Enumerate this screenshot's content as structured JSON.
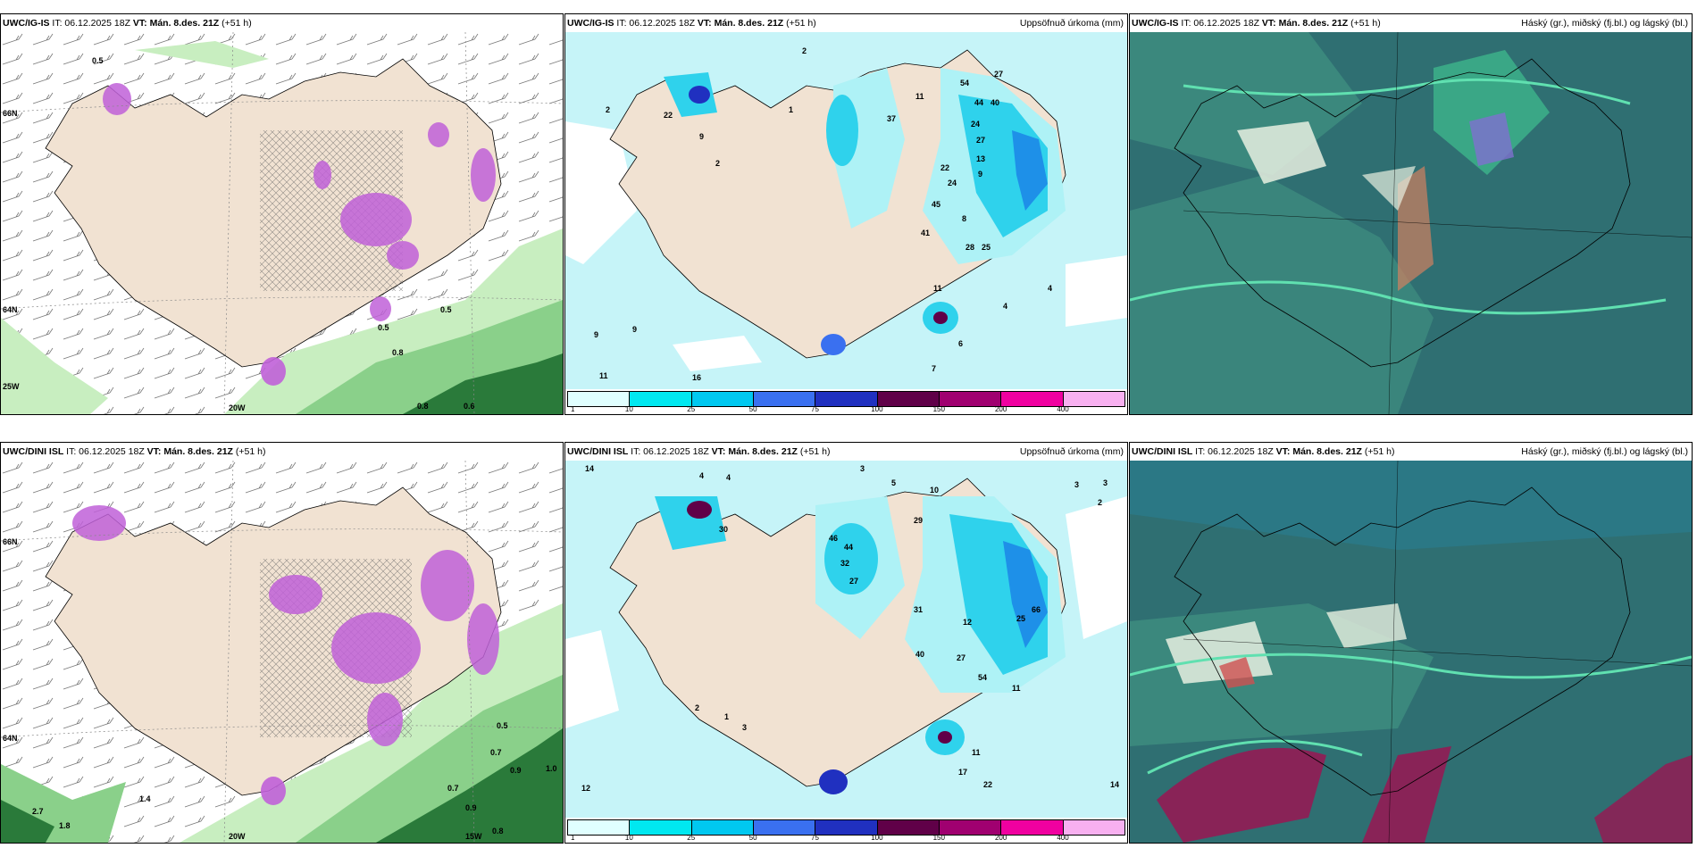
{
  "panels": [
    {
      "id": "p1",
      "title_model": "UWC/IG-IS",
      "title_it": "IT: 06.12.2025 18Z",
      "title_vt": "VT: Mán. 8.des. 21Z",
      "title_lead": "(+51 h)",
      "right_title": "",
      "lat_labels": [
        "66N",
        "64N",
        "25W",
        "20W"
      ],
      "values": [
        "0.5",
        "0.5",
        "0.5",
        "0.8",
        "0.8",
        "0.6"
      ]
    },
    {
      "id": "p2",
      "title_model": "UWC/IG-IS",
      "title_it": "IT: 06.12.2025 18Z",
      "title_vt": "VT: Mán. 8.des. 21Z",
      "title_lead": "(+51 h)",
      "right_title": "Uppsöfnuð úrkoma (mm)",
      "values": [
        "2",
        "2",
        "22",
        "9",
        "1",
        "2",
        "37",
        "11",
        "54",
        "27",
        "44",
        "40",
        "24",
        "27",
        "13",
        "9",
        "22",
        "24",
        "45",
        "8",
        "41",
        "28",
        "25",
        "4",
        "11",
        "9",
        "9",
        "16",
        "11",
        "7",
        "6",
        "4"
      ]
    },
    {
      "id": "p3",
      "title_model": "UWC/IG-IS",
      "title_it": "IT: 06.12.2025 18Z",
      "title_vt": "VT: Mán. 8.des. 21Z",
      "title_lead": "(+51 h)",
      "right_title": "Háský (gr.), miðský (fj.bl.) og lágský (bl.)"
    },
    {
      "id": "p4",
      "title_model": "UWC/DINI ISL",
      "title_it": "IT: 06.12.2025 18Z",
      "title_vt": "VT: Mán. 8.des. 21Z",
      "title_lead": "(+51 h)",
      "right_title": "",
      "lat_labels": [
        "66N",
        "64N",
        "20W",
        "15W"
      ],
      "values": [
        "0.5",
        "0.7",
        "0.9",
        "1.0",
        "0.7",
        "0.9",
        "0.8",
        "2.7",
        "1.8",
        "1.4"
      ]
    },
    {
      "id": "p5",
      "title_model": "UWC/DINI ISL",
      "title_it": "IT: 06.12.2025 18Z",
      "title_vt": "VT: Mán. 8.des. 21Z",
      "title_lead": "(+51 h)",
      "right_title": "Uppsöfnuð úrkoma (mm)",
      "values": [
        "14",
        "4",
        "4",
        "3",
        "5",
        "10",
        "3",
        "3",
        "2",
        "30",
        "29",
        "46",
        "44",
        "32",
        "27",
        "31",
        "12",
        "40",
        "27",
        "25",
        "66",
        "54",
        "11",
        "2",
        "1",
        "3",
        "11",
        "17",
        "22",
        "14",
        "12"
      ]
    },
    {
      "id": "p6",
      "title_model": "UWC/DINI ISL",
      "title_it": "IT: 06.12.2025 18Z",
      "title_vt": "VT: Mán. 8.des. 21Z",
      "title_lead": "(+51 h)",
      "right_title": "Háský (gr.), miðský (fj.bl.) og lágský (bl.)"
    }
  ],
  "colorbar": {
    "colors": [
      "#e0ffff",
      "#00e8f0",
      "#00c8f0",
      "#3a70f0",
      "#2030c0",
      "#600048",
      "#a00070",
      "#f000a0",
      "#f8b0f0"
    ],
    "labels": [
      "1",
      "10",
      "25",
      "50",
      "75",
      "100",
      "150",
      "200",
      "400"
    ]
  },
  "colors": {
    "land": "#f1e2d2",
    "sea_light": "#c6f4f8",
    "precip_light": "#aef2f6",
    "precip_mid": "#2fd2ec",
    "precip_strong": "#1e90e8",
    "snow_pink": "#c060d8",
    "green_light": "#c8eec0",
    "green_mid": "#70c070",
    "green_dark": "#2a7a3a",
    "cloud_teal": "#2f6f72",
    "cloud_green": "#3fbf8f",
    "cloud_white": "#e8f0e0"
  }
}
